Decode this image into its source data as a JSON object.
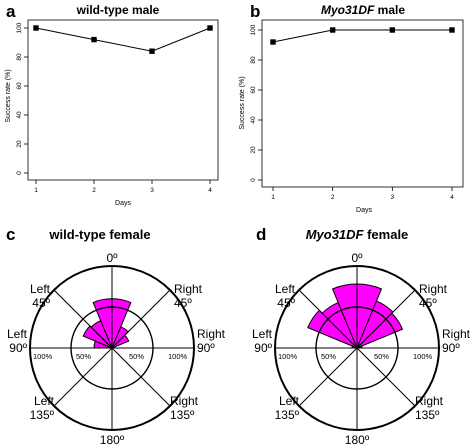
{
  "chart_data": [
    {
      "type": "line",
      "panel": "a",
      "title": "wild-type male",
      "xlabel": "Days",
      "ylabel": "Success rate (%)",
      "x": [
        1,
        2,
        3,
        4
      ],
      "xticks": [
        "1",
        "2",
        "3",
        "4"
      ],
      "ylim": [
        0,
        100
      ],
      "yticks": [
        "0",
        "20",
        "40",
        "60",
        "80",
        "100"
      ],
      "series": [
        {
          "values": [
            100,
            92,
            84,
            100
          ]
        }
      ],
      "marker": "square",
      "grid": false
    },
    {
      "type": "line",
      "panel": "b",
      "title_italic": "Myo31DF",
      "title": " male",
      "xlabel": "Days",
      "ylabel": "Success rate (%)",
      "x": [
        1,
        2,
        3,
        4
      ],
      "xticks": [
        "1",
        "2",
        "3",
        "4"
      ],
      "ylim": [
        0,
        100
      ],
      "yticks": [
        "0",
        "20",
        "40",
        "60",
        "80",
        "100"
      ],
      "series": [
        {
          "values": [
            92,
            100,
            100,
            100
          ]
        }
      ],
      "marker": "square",
      "grid": false
    },
    {
      "type": "polar",
      "panel": "c",
      "title": "wild-type female",
      "rlim": [
        0,
        100
      ],
      "rings": [
        "50%",
        "100%"
      ],
      "directions": {
        "top": "0º",
        "left45": [
          "Left",
          "45º"
        ],
        "right45": [
          "Right",
          "45º"
        ],
        "left90": [
          "Left",
          "90º"
        ],
        "right90": [
          "Right",
          "90º"
        ],
        "left135": [
          "Left",
          "135º"
        ],
        "right135": [
          "Right",
          "135º"
        ],
        "bottom": "180º"
      },
      "sectors": [
        {
          "from": -90,
          "to": -67.5,
          "value": 22
        },
        {
          "from": -67.5,
          "to": -45,
          "value": 38
        },
        {
          "from": -45,
          "to": -22.5,
          "value": 36
        },
        {
          "from": -22.5,
          "to": 0,
          "value": 60
        },
        {
          "from": 0,
          "to": 22.5,
          "value": 60
        },
        {
          "from": 22.5,
          "to": 45,
          "value": 28
        },
        {
          "from": 45,
          "to": 67.5,
          "value": 22
        },
        {
          "from": 67.5,
          "to": 90,
          "value": 0
        }
      ],
      "color": "#ff00ff"
    },
    {
      "type": "polar",
      "panel": "d",
      "title_italic": "Myo31DF",
      "title": " female",
      "rlim": [
        0,
        100
      ],
      "rings": [
        "50%",
        "100%"
      ],
      "directions": {
        "top": "0º",
        "left45": [
          "Left",
          "45º"
        ],
        "right45": [
          "Right",
          "45º"
        ],
        "left90": [
          "Left",
          "90º"
        ],
        "right90": [
          "Right",
          "90º"
        ],
        "left135": [
          "Left",
          "135º"
        ],
        "right135": [
          "Right",
          "135º"
        ],
        "bottom": "180º"
      },
      "sectors": [
        {
          "from": -90,
          "to": -67.5,
          "value": 6
        },
        {
          "from": -67.5,
          "to": -45,
          "value": 65
        },
        {
          "from": -45,
          "to": -22.5,
          "value": 60
        },
        {
          "from": -22.5,
          "to": 0,
          "value": 78
        },
        {
          "from": 0,
          "to": 22.5,
          "value": 78
        },
        {
          "from": 22.5,
          "to": 45,
          "value": 62
        },
        {
          "from": 45,
          "to": 67.5,
          "value": 60
        },
        {
          "from": 67.5,
          "to": 90,
          "value": 6
        }
      ],
      "color": "#ff00ff"
    }
  ]
}
